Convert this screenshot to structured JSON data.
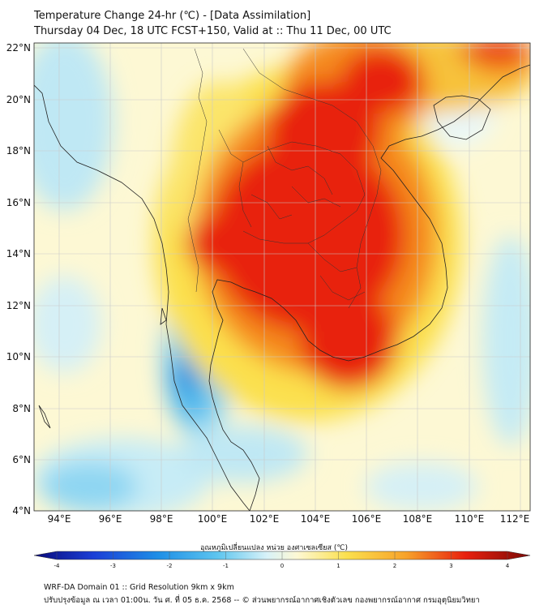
{
  "title": {
    "line1": "Temperature Change 24-hr (℃) - [Data Assimilation]",
    "line2": "Thursday 04 Dec, 18 UTC FCST+150, Valid at :: Thu 11 Dec, 00 UTC"
  },
  "axes": {
    "lat_labels": [
      "22°N",
      "20°N",
      "18°N",
      "16°N",
      "14°N",
      "12°N",
      "10°N",
      "8°N",
      "6°N",
      "4°N"
    ],
    "lon_labels": [
      "94°E",
      "96°E",
      "98°E",
      "100°E",
      "102°E",
      "104°E",
      "106°E",
      "108°E",
      "110°E",
      "112°E"
    ]
  },
  "colorbar": {
    "label": "อุณหภูมิเปลี่ยนแปลง หน่วย องศาเซลเซียส (℃)",
    "ticks": [
      "-4",
      "-3",
      "-2",
      "-1",
      "0",
      "1",
      "2",
      "3",
      "4"
    ]
  },
  "footer": {
    "line1": "WRF-DA Domain 01 :: Grid Resolution 9km x 9km",
    "line2": "ปรับปรุงข้อมูล ณ เวลา 01:00น. วัน ศ. ที่ 05 ธ.ค. 2568 -- © ส่วนพยากรณ์อากาศเชิงตัวเลข กองพยากรณ์อากาศ กรมอุตุนิยมวิทยา"
  },
  "colors": {
    "hot": "#e8200e",
    "warm": "#f58a1e",
    "mild": "#fbe04e",
    "pale": "#fdf6c0",
    "cool": "#bfe8f4",
    "cold": "#5ec5ef",
    "colder": "#2a8de0"
  }
}
